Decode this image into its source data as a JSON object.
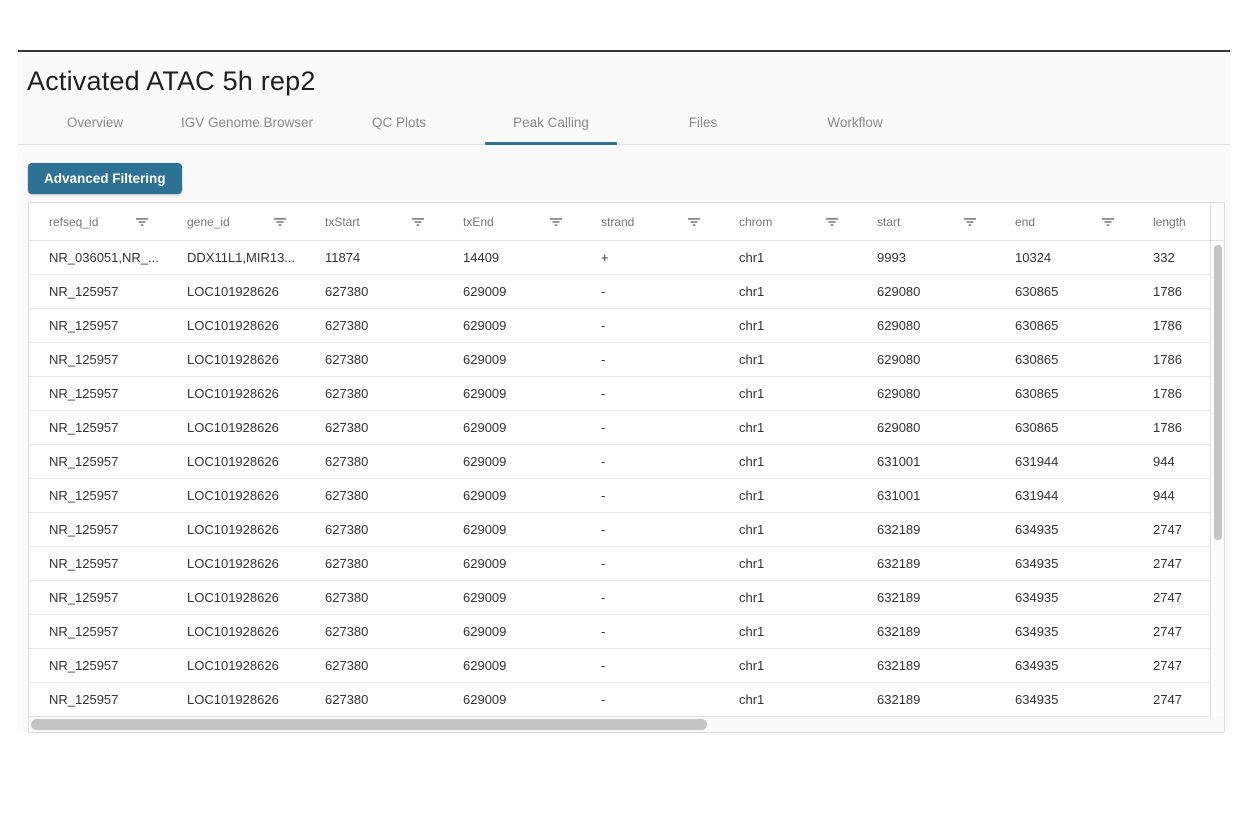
{
  "page": {
    "title": "Activated ATAC 5h rep2"
  },
  "tabs": [
    {
      "label": "Overview",
      "active": false
    },
    {
      "label": "IGV Genome Browser",
      "active": false
    },
    {
      "label": "QC Plots",
      "active": false
    },
    {
      "label": "Peak Calling",
      "active": true
    },
    {
      "label": "Files",
      "active": false
    },
    {
      "label": "Workflow",
      "active": false
    }
  ],
  "toolbar": {
    "advanced_filtering_label": "Advanced Filtering"
  },
  "table": {
    "columns": [
      "refseq_id",
      "gene_id",
      "txStart",
      "txEnd",
      "strand",
      "chrom",
      "start",
      "end",
      "length"
    ],
    "filter_icon_name": "filter-list-icon",
    "rows": [
      [
        "NR_036051,NR_...",
        "DDX11L1,MIR13...",
        "11874",
        "14409",
        "+",
        "chr1",
        "9993",
        "10324",
        "332"
      ],
      [
        "NR_125957",
        "LOC101928626",
        "627380",
        "629009",
        "-",
        "chr1",
        "629080",
        "630865",
        "1786"
      ],
      [
        "NR_125957",
        "LOC101928626",
        "627380",
        "629009",
        "-",
        "chr1",
        "629080",
        "630865",
        "1786"
      ],
      [
        "NR_125957",
        "LOC101928626",
        "627380",
        "629009",
        "-",
        "chr1",
        "629080",
        "630865",
        "1786"
      ],
      [
        "NR_125957",
        "LOC101928626",
        "627380",
        "629009",
        "-",
        "chr1",
        "629080",
        "630865",
        "1786"
      ],
      [
        "NR_125957",
        "LOC101928626",
        "627380",
        "629009",
        "-",
        "chr1",
        "629080",
        "630865",
        "1786"
      ],
      [
        "NR_125957",
        "LOC101928626",
        "627380",
        "629009",
        "-",
        "chr1",
        "631001",
        "631944",
        "944"
      ],
      [
        "NR_125957",
        "LOC101928626",
        "627380",
        "629009",
        "-",
        "chr1",
        "631001",
        "631944",
        "944"
      ],
      [
        "NR_125957",
        "LOC101928626",
        "627380",
        "629009",
        "-",
        "chr1",
        "632189",
        "634935",
        "2747"
      ],
      [
        "NR_125957",
        "LOC101928626",
        "627380",
        "629009",
        "-",
        "chr1",
        "632189",
        "634935",
        "2747"
      ],
      [
        "NR_125957",
        "LOC101928626",
        "627380",
        "629009",
        "-",
        "chr1",
        "632189",
        "634935",
        "2747"
      ],
      [
        "NR_125957",
        "LOC101928626",
        "627380",
        "629009",
        "-",
        "chr1",
        "632189",
        "634935",
        "2747"
      ],
      [
        "NR_125957",
        "LOC101928626",
        "627380",
        "629009",
        "-",
        "chr1",
        "632189",
        "634935",
        "2747"
      ],
      [
        "NR_125957",
        "LOC101928626",
        "627380",
        "629009",
        "-",
        "chr1",
        "632189",
        "634935",
        "2747"
      ]
    ]
  },
  "colors": {
    "primary": "#2d7195",
    "page_bg": "#fafafa",
    "border": "#e0e0e0",
    "row_border": "#e9e9e9",
    "header_text": "#757575",
    "cell_text": "#333333",
    "tab_text": "#8a8a8a",
    "scroll_thumb": "#c4c4c4",
    "topline": "#383838"
  }
}
